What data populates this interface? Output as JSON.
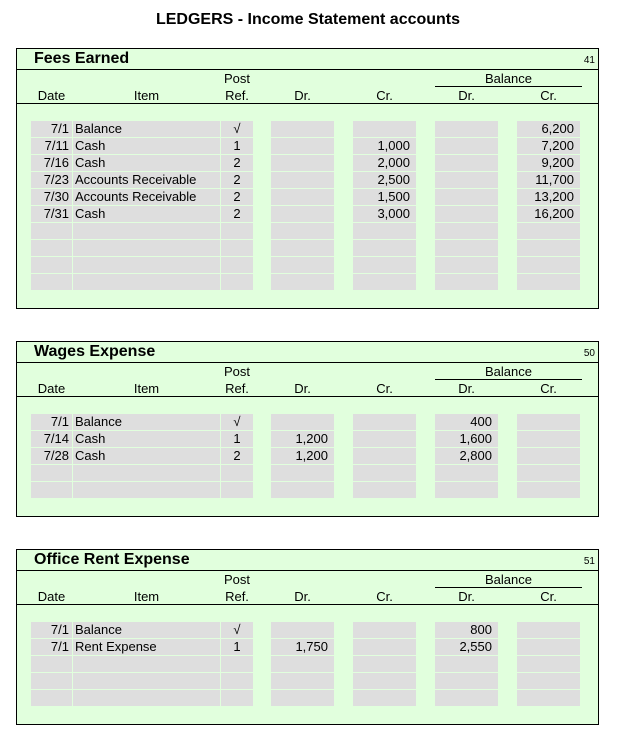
{
  "page": {
    "title": "LEDGERS - Income Statement accounts"
  },
  "headers": {
    "post": "Post",
    "balance": "Balance",
    "date": "Date",
    "item": "Item",
    "ref": "Ref.",
    "dr": "Dr.",
    "cr": "Cr.",
    "bal_dr": "Dr.",
    "bal_cr": "Cr."
  },
  "ledgers": [
    {
      "name": "Fees Earned",
      "number": "41",
      "rows": [
        {
          "date": "7/1",
          "item": "Balance",
          "ref": "√",
          "dr": "",
          "cr": "",
          "bal_dr": "",
          "bal_cr": "6,200"
        },
        {
          "date": "7/11",
          "item": "Cash",
          "ref": "1",
          "dr": "",
          "cr": "1,000",
          "bal_dr": "",
          "bal_cr": "7,200"
        },
        {
          "date": "7/16",
          "item": "Cash",
          "ref": "2",
          "dr": "",
          "cr": "2,000",
          "bal_dr": "",
          "bal_cr": "9,200"
        },
        {
          "date": "7/23",
          "item": "Accounts Receivable",
          "ref": "2",
          "dr": "",
          "cr": "2,500",
          "bal_dr": "",
          "bal_cr": "11,700"
        },
        {
          "date": "7/30",
          "item": "Accounts Receivable",
          "ref": "2",
          "dr": "",
          "cr": "1,500",
          "bal_dr": "",
          "bal_cr": "13,200"
        },
        {
          "date": "7/31",
          "item": "Cash",
          "ref": "2",
          "dr": "",
          "cr": "3,000",
          "bal_dr": "",
          "bal_cr": "16,200"
        },
        {
          "date": "",
          "item": "",
          "ref": "",
          "dr": "",
          "cr": "",
          "bal_dr": "",
          "bal_cr": ""
        },
        {
          "date": "",
          "item": "",
          "ref": "",
          "dr": "",
          "cr": "",
          "bal_dr": "",
          "bal_cr": ""
        },
        {
          "date": "",
          "item": "",
          "ref": "",
          "dr": "",
          "cr": "",
          "bal_dr": "",
          "bal_cr": ""
        },
        {
          "date": "",
          "item": "",
          "ref": "",
          "dr": "",
          "cr": "",
          "bal_dr": "",
          "bal_cr": ""
        }
      ]
    },
    {
      "name": "Wages Expense",
      "number": "50",
      "rows": [
        {
          "date": "7/1",
          "item": "Balance",
          "ref": "√",
          "dr": "",
          "cr": "",
          "bal_dr": "400",
          "bal_cr": ""
        },
        {
          "date": "7/14",
          "item": "Cash",
          "ref": "1",
          "dr": "1,200",
          "cr": "",
          "bal_dr": "1,600",
          "bal_cr": ""
        },
        {
          "date": "7/28",
          "item": "Cash",
          "ref": "2",
          "dr": "1,200",
          "cr": "",
          "bal_dr": "2,800",
          "bal_cr": ""
        },
        {
          "date": "",
          "item": "",
          "ref": "",
          "dr": "",
          "cr": "",
          "bal_dr": "",
          "bal_cr": ""
        },
        {
          "date": "",
          "item": "",
          "ref": "",
          "dr": "",
          "cr": "",
          "bal_dr": "",
          "bal_cr": ""
        }
      ]
    },
    {
      "name": "Office Rent Expense",
      "number": "51",
      "rows": [
        {
          "date": "7/1",
          "item": "Balance",
          "ref": "√",
          "dr": "",
          "cr": "",
          "bal_dr": "800",
          "bal_cr": ""
        },
        {
          "date": "7/1",
          "item": "Rent Expense",
          "ref": "1",
          "dr": "1,750",
          "cr": "",
          "bal_dr": "2,550",
          "bal_cr": ""
        },
        {
          "date": "",
          "item": "",
          "ref": "",
          "dr": "",
          "cr": "",
          "bal_dr": "",
          "bal_cr": ""
        },
        {
          "date": "",
          "item": "",
          "ref": "",
          "dr": "",
          "cr": "",
          "bal_dr": "",
          "bal_cr": ""
        },
        {
          "date": "",
          "item": "",
          "ref": "",
          "dr": "",
          "cr": "",
          "bal_dr": "",
          "bal_cr": ""
        }
      ]
    }
  ]
}
